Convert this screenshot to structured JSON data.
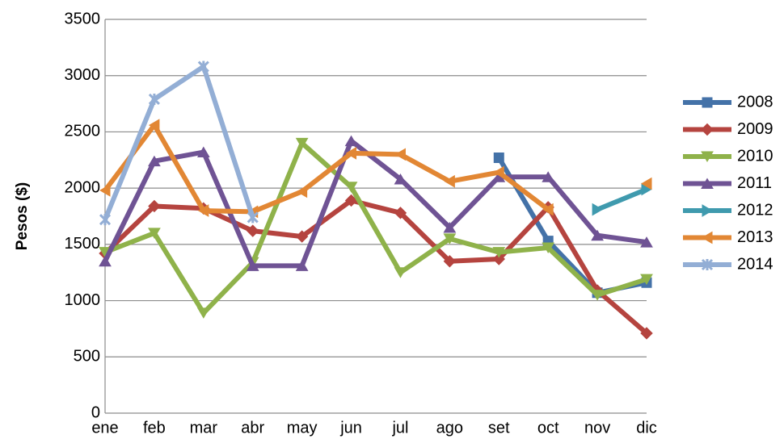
{
  "chart_data": {
    "type": "line",
    "y_label": "Pesos ($)",
    "categories": [
      "ene",
      "feb",
      "mar",
      "abr",
      "may",
      "jun",
      "jul",
      "ago",
      "set",
      "oct",
      "nov",
      "dic"
    ],
    "ylim": [
      0,
      3500
    ],
    "yticks": [
      0,
      500,
      1000,
      1500,
      2000,
      2500,
      3000,
      3500
    ],
    "grid": true,
    "legend": "right",
    "series": [
      {
        "name": "2008",
        "color": "#4472a8",
        "values": [
          null,
          null,
          null,
          null,
          null,
          null,
          null,
          null,
          2270,
          1530,
          1070,
          1160
        ]
      },
      {
        "name": "2009",
        "color": "#b5443f",
        "values": [
          1420,
          1840,
          1820,
          1620,
          1570,
          1890,
          1780,
          1350,
          1370,
          1830,
          1090,
          710
        ]
      },
      {
        "name": "2010",
        "color": "#8fb24a",
        "values": [
          1430,
          1600,
          890,
          1340,
          2400,
          2010,
          1250,
          1550,
          1430,
          1470,
          1050,
          1190
        ]
      },
      {
        "name": "2011",
        "color": "#6f5394",
        "values": [
          1350,
          2240,
          2320,
          1310,
          1310,
          2420,
          2080,
          1650,
          2100,
          2100,
          1580,
          1520
        ]
      },
      {
        "name": "2012",
        "color": "#3f9aae",
        "values": [
          null,
          null,
          null,
          null,
          null,
          null,
          null,
          null,
          null,
          null,
          1810,
          1990
        ]
      },
      {
        "name": "2013",
        "color": "#e28734",
        "values": [
          1980,
          2560,
          1800,
          1790,
          1970,
          2310,
          2300,
          2060,
          2140,
          1810,
          null,
          2040
        ]
      },
      {
        "name": "2014",
        "color": "#93aed5",
        "values": [
          1720,
          2790,
          3080,
          1740,
          null,
          null,
          null,
          null,
          null,
          null,
          null,
          null
        ]
      }
    ]
  }
}
